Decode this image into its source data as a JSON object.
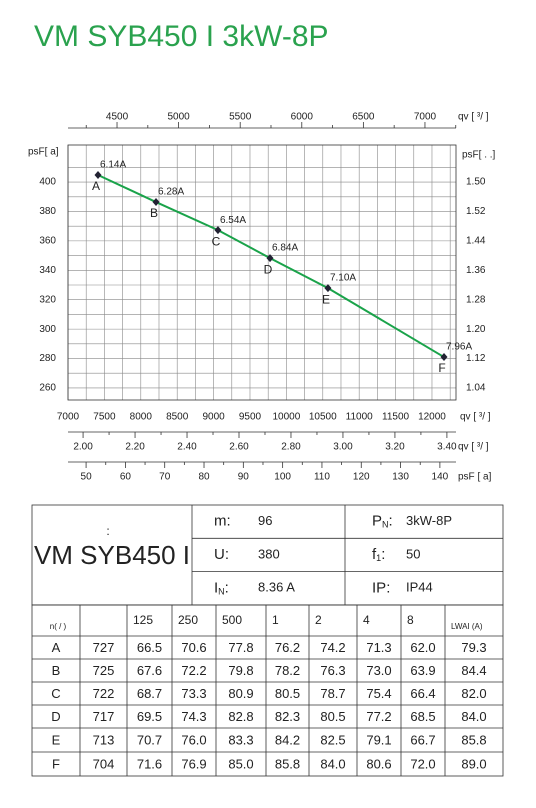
{
  "header": {
    "title": "VM SYB450 I 3kW-8P"
  },
  "chart_data": {
    "type": "line",
    "x": [
      7412,
      8209,
      9060,
      9775,
      10571,
      12165
    ],
    "series": [
      {
        "name": "curve",
        "color": "#1aa34a",
        "values": [
          404.8,
          386.4,
          367.3,
          348.3,
          327.9,
          281
        ],
        "value_labels": [
          "6.14A",
          "6.28A",
          "6.54A",
          "6.84A",
          "7.10A",
          "7.96A"
        ],
        "point_labels": [
          "A",
          "B",
          "C",
          "D",
          "E",
          "F"
        ]
      }
    ],
    "xlim": [
      7000,
      12330
    ],
    "xticks": [
      7000,
      7500,
      8000,
      8500,
      9000,
      9500,
      10000,
      10500,
      11000,
      11500,
      12000
    ],
    "ylim": [
      251.8,
      425.2
    ],
    "yticks": [
      260,
      280,
      300,
      320,
      340,
      360,
      380,
      400
    ],
    "y2_labels": [
      "1.04",
      "1.12",
      "1.20",
      "1.28",
      "1.36",
      "1.44",
      "1.52",
      "1.50"
    ],
    "grid": true,
    "top_axis": {
      "lim": [
        4102,
        7252
      ],
      "ticks": [
        4500,
        5000,
        5500,
        6000,
        6500,
        7000
      ],
      "label": "qv [   ³/    ]"
    },
    "bottom_axis_2": {
      "lim": [
        1.942,
        3.435
      ],
      "ticks": [
        {
          "value": 2,
          "label": "2.00"
        },
        {
          "value": 2.2,
          "label": "2.20"
        },
        {
          "value": 2.4,
          "label": "2.40"
        },
        {
          "value": 2.6,
          "label": "2.60"
        },
        {
          "value": 2.8,
          "label": "2.80"
        },
        {
          "value": 3,
          "label": "3.00"
        },
        {
          "value": 3.2,
          "label": "3.20"
        },
        {
          "value": 3.4,
          "label": "3.40"
        }
      ],
      "label": "qv [  ³/  ]"
    },
    "bottom_axis_3": {
      "lim": [
        45.4,
        144.1
      ],
      "ticks": [
        50,
        60,
        70,
        80,
        90,
        100,
        110,
        120,
        130,
        140
      ],
      "label": "psF [   a]"
    },
    "ylabel": "psF[   a]",
    "y2label": "psF[      .   .]",
    "xlabel": "qv [  ³/  ]"
  },
  "specs": {
    "colon": ":",
    "model": "VM SYB450 I",
    "items": [
      {
        "label": "m",
        "sub": "",
        "sep": ":",
        "value": "96"
      },
      {
        "label": "P",
        "sub": "N",
        "sep": ":",
        "value": "3kW-8P"
      },
      {
        "label": "U",
        "sub": "",
        "sep": ":",
        "value": "380"
      },
      {
        "label": "f",
        "sub": "1",
        "sep": ":",
        "value": "50"
      },
      {
        "label": "I",
        "sub": "N",
        "sep": ":",
        "value": "8.36  A"
      },
      {
        "label": "IP",
        "sub": "",
        "sep": ":",
        "value": "IP44"
      }
    ]
  },
  "table": {
    "header": [
      "n(  /  )",
      "125",
      "250",
      "500",
      "1",
      "2",
      "4",
      "8",
      "LWAI    (A)"
    ],
    "rows": [
      [
        "A",
        "727",
        "66.5",
        "70.6",
        "77.8",
        "76.2",
        "74.2",
        "71.3",
        "62.0",
        "79.3"
      ],
      [
        "B",
        "725",
        "67.6",
        "72.2",
        "79.8",
        "78.2",
        "76.3",
        "73.0",
        "63.9",
        "84.4"
      ],
      [
        "C",
        "722",
        "68.7",
        "73.3",
        "80.9",
        "80.5",
        "78.7",
        "75.4",
        "66.4",
        "82.0"
      ],
      [
        "D",
        "717",
        "69.5",
        "74.3",
        "82.8",
        "82.3",
        "80.5",
        "77.2",
        "68.5",
        "84.0"
      ],
      [
        "E",
        "713",
        "70.7",
        "76.0",
        "83.3",
        "84.2",
        "82.5",
        "79.1",
        "66.7",
        "85.8"
      ],
      [
        "F",
        "704",
        "71.6",
        "76.9",
        "85.0",
        "85.8",
        "84.0",
        "80.6",
        "72.0",
        "89.0"
      ]
    ]
  }
}
